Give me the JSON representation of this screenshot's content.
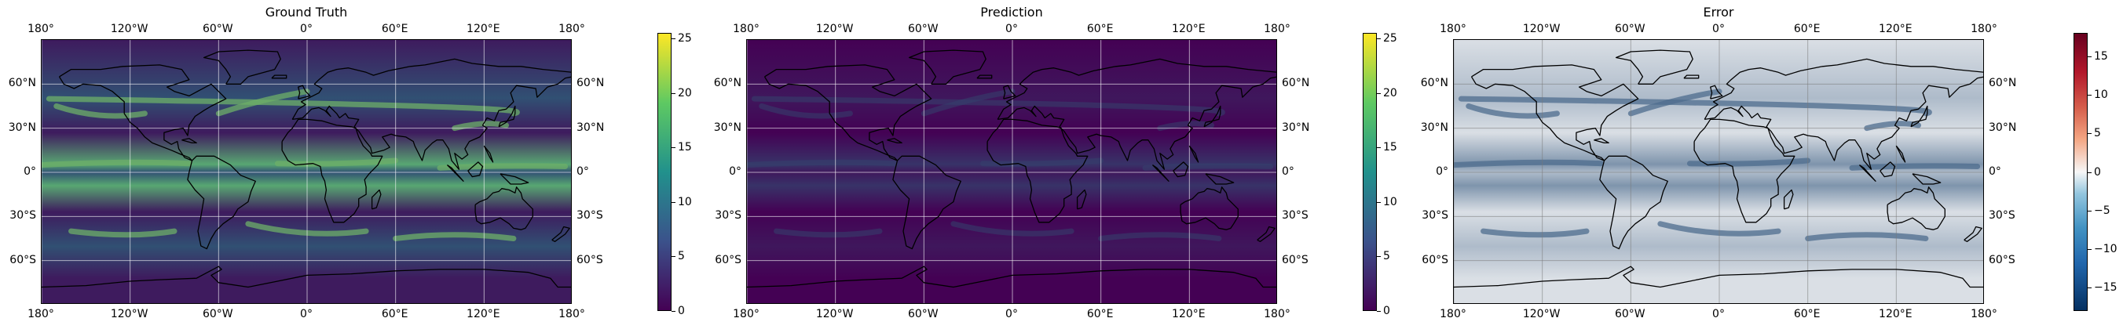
{
  "figure": {
    "panels": [
      {
        "id": "ground-truth",
        "title": "Ground Truth",
        "colormap": "viridis",
        "intensity": "high",
        "colorbar_ticks": [
          "0",
          "5",
          "10",
          "15",
          "20",
          "25"
        ],
        "colorbar_range": [
          0,
          25.5
        ],
        "colorbar_values": [
          0,
          5,
          10,
          15,
          20,
          25
        ]
      },
      {
        "id": "prediction",
        "title": "Prediction",
        "colormap": "viridis",
        "intensity": "low",
        "colorbar_ticks": [
          "0",
          "5",
          "10",
          "15",
          "20",
          "25"
        ],
        "colorbar_range": [
          0,
          25.5
        ],
        "colorbar_values": [
          0,
          5,
          10,
          15,
          20,
          25
        ]
      },
      {
        "id": "error",
        "title": "Error",
        "colormap": "RdBu_r",
        "intensity": "diverging",
        "colorbar_ticks": [
          "−15",
          "−10",
          "−5",
          "0",
          "5",
          "10",
          "15"
        ],
        "colorbar_range": [
          -18,
          18
        ],
        "colorbar_values": [
          -15,
          -10,
          -5,
          0,
          5,
          10,
          15
        ]
      }
    ],
    "lon_ticks": [
      "180°",
      "120°W",
      "60°W",
      "0°",
      "60°E",
      "120°E",
      "180°"
    ],
    "lat_ticks_left": [
      "60°N",
      "30°N",
      "0°",
      "30°S",
      "60°S"
    ],
    "lat_ticks_right": [
      "60°N",
      "30°N",
      "0°",
      "30°S",
      "60°S"
    ],
    "lat_values": [
      60,
      30,
      0,
      -30,
      -60
    ],
    "lon_values": [
      -180,
      -120,
      -60,
      0,
      60,
      120,
      180
    ],
    "lat_extent": [
      -90,
      90
    ],
    "gridlines": true,
    "coastlines": true,
    "colors": {
      "viridis_low": "#440154",
      "viridis_mid": "#21918c",
      "viridis_high": "#fde725",
      "rdbu_low": "#053061",
      "rdbu_mid": "#f7f7f7",
      "rdbu_high": "#67001f",
      "coastline": "#000000",
      "gridline": "#d9d9d9"
    }
  }
}
